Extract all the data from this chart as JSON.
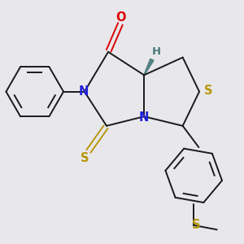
{
  "background_color": "#e8e8ec",
  "bond_color": "#1a1a1a",
  "N_color": "#2020dd",
  "O_color": "#dd0000",
  "S_color": "#b8960a",
  "H_color": "#4a7a7a",
  "line_width": 1.4,
  "font_size": 8.5,
  "figsize": [
    3.0,
    3.0
  ],
  "dpi": 100,
  "xlim": [
    -2.2,
    2.2
  ],
  "ylim": [
    -2.6,
    1.5
  ]
}
